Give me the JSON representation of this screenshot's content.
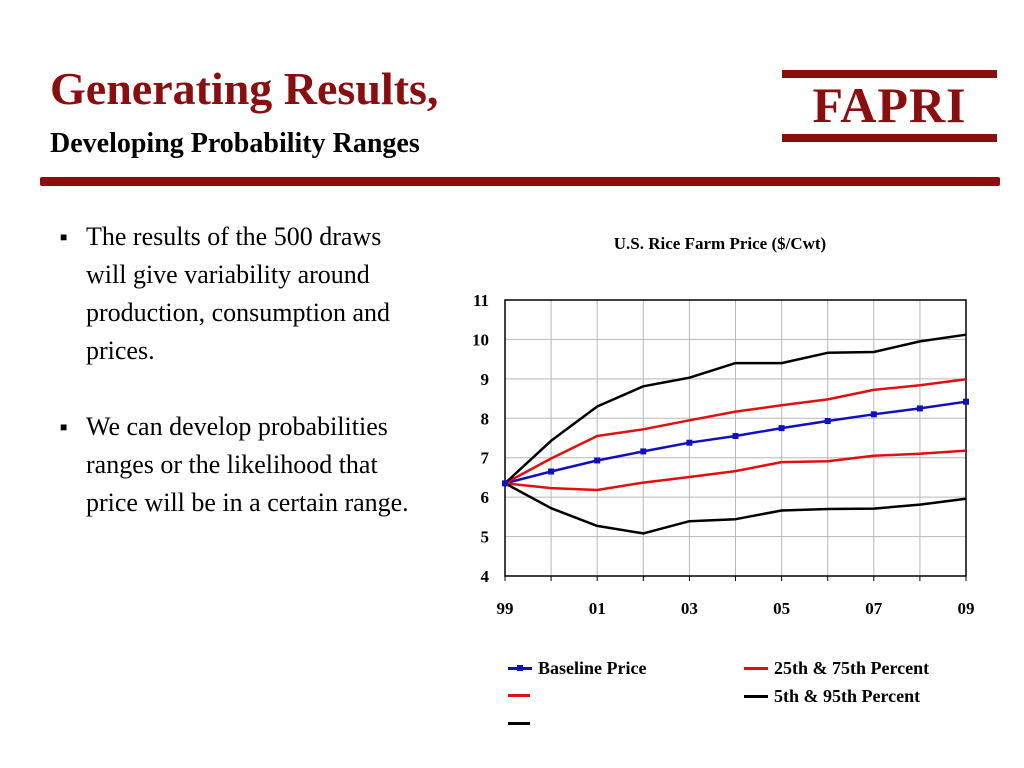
{
  "slide": {
    "title": "Generating Results,",
    "subtitle": "Developing Probability Ranges",
    "logo": "FAPRI",
    "bullets": [
      "The results of the 500 draws will give variability around production, consumption and prices.",
      "We can develop probabilities ranges or the likelihood that price will be in a certain range."
    ]
  },
  "colors": {
    "accent": "#8b0d0d",
    "baseline": "#1010c0",
    "quartile": "#e01010",
    "tail": "#000000"
  },
  "chart_data": {
    "type": "line",
    "title": "U.S. Rice Farm Price ($/Cwt)",
    "x": [
      "99",
      "00",
      "01",
      "02",
      "03",
      "04",
      "05",
      "06",
      "07",
      "08",
      "09"
    ],
    "xticks": [
      "99",
      "01",
      "03",
      "05",
      "07",
      "09"
    ],
    "ylim": [
      4,
      11
    ],
    "yticks": [
      4,
      5,
      6,
      7,
      8,
      9,
      10,
      11
    ],
    "grid": true,
    "legend_position": "bottom",
    "series": [
      {
        "name": "Baseline Price",
        "color": "#1010c0",
        "markers": true,
        "values": [
          6.35,
          6.65,
          6.93,
          7.16,
          7.38,
          7.55,
          7.75,
          7.93,
          8.1,
          8.25,
          8.42
        ]
      },
      {
        "name": "25th & 75th Percent",
        "color": "#e01010",
        "markers": false,
        "values": [
          6.35,
          6.98,
          7.55,
          7.72,
          7.95,
          8.17,
          8.33,
          8.48,
          8.72,
          8.84,
          8.99
        ]
      },
      {
        "color": "#e01010",
        "markers": false,
        "values": [
          6.35,
          6.23,
          6.18,
          6.37,
          6.51,
          6.66,
          6.89,
          6.91,
          7.05,
          7.1,
          7.18
        ]
      },
      {
        "name": "5th & 95th Percent",
        "color": "#000000",
        "markers": false,
        "values": [
          6.35,
          7.43,
          8.3,
          8.81,
          9.03,
          9.4,
          9.4,
          9.66,
          9.68,
          9.95,
          10.12
        ]
      },
      {
        "color": "#000000",
        "markers": false,
        "values": [
          6.35,
          5.72,
          5.27,
          5.08,
          5.39,
          5.44,
          5.66,
          5.7,
          5.71,
          5.81,
          5.96
        ]
      }
    ]
  }
}
